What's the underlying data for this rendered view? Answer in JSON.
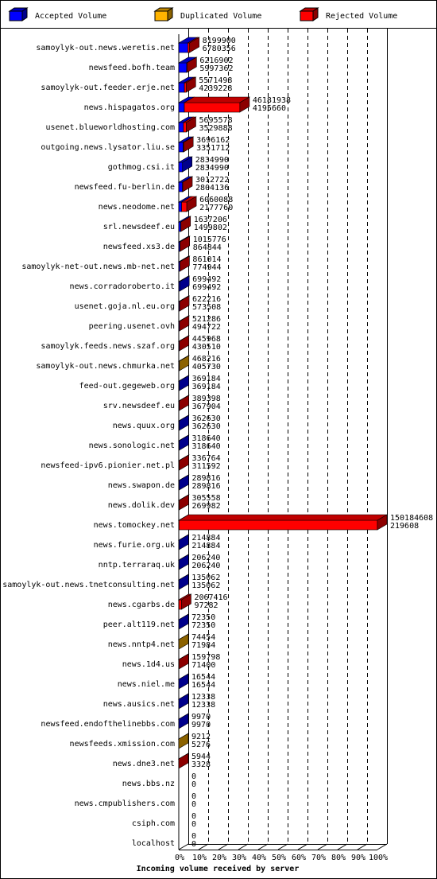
{
  "chart_data": {
    "type": "bar3d-stacked",
    "x_axis_label": "Incoming volume received by server",
    "categories": [
      "samoylyk-out.news.weretis.net",
      "newsfeed.bofh.team",
      "samoylyk-out.feeder.erje.net",
      "news.hispagatos.org",
      "usenet.blueworldhosting.com",
      "outgoing.news.lysator.liu.se",
      "gothmog.csi.it",
      "newsfeed.fu-berlin.de",
      "news.neodome.net",
      "srl.newsdeef.eu",
      "newsfeed.xs3.de",
      "samoylyk-net-out.news.mb-net.net",
      "news.corradoroberto.it",
      "usenet.goja.nl.eu.org",
      "peering.usenet.ovh",
      "samoylyk.feeds.news.szaf.org",
      "samoylyk-out.news.chmurka.net",
      "feed-out.gegeweb.org",
      "srv.newsdeef.eu",
      "news.quux.org",
      "news.sonologic.net",
      "newsfeed-ipv6.pionier.net.pl",
      "news.swapon.de",
      "news.dolik.dev",
      "news.tomockey.net",
      "news.furie.org.uk",
      "nntp.terraraq.uk",
      "samoylyk-out.news.tnetconsulting.net",
      "news.cgarbs.de",
      "peer.alt119.net",
      "news.nntp4.net",
      "news.1d4.us",
      "news.niel.me",
      "news.ausics.net",
      "newsfeed.endofthelinebbs.com",
      "newsfeeds.xmission.com",
      "news.dne3.net",
      "news.bbs.nz",
      "news.cmpublishers.com",
      "csiph.com",
      "localhost"
    ],
    "totals": [
      8199900,
      6216902,
      5571498,
      46181938,
      5695578,
      3696162,
      2834990,
      3012722,
      6060088,
      1637206,
      1015776,
      861014,
      699492,
      622216,
      521286,
      445968,
      468216,
      369184,
      389398,
      362630,
      318640,
      336764,
      289816,
      305558,
      150184608,
      214884,
      206240,
      135062,
      2067416,
      72350,
      74454,
      159798,
      16544,
      12338,
      9970,
      9212,
      5944,
      0,
      0,
      0,
      0
    ],
    "series": [
      {
        "name": "Accepted Volume",
        "color": "#0000ff",
        "values": [
          6780356,
          5997362,
          4239228,
          4195660,
          3529888,
          3351712,
          2834990,
          2804136,
          2177760,
          1499802,
          864844,
          774944,
          699492,
          573508,
          494722,
          430510,
          405730,
          369184,
          367904,
          362630,
          318640,
          311592,
          289816,
          269982,
          219608,
          214884,
          206240,
          135062,
          97282,
          72350,
          71984,
          71400,
          16544,
          12338,
          9970,
          5276,
          3328,
          0,
          0,
          0,
          0
        ]
      },
      {
        "name": "Duplicated Volume",
        "color": "#ffb400",
        "values": [
          0,
          0,
          0,
          0,
          0,
          0,
          0,
          0,
          0,
          0,
          0,
          0,
          0,
          0,
          0,
          0,
          62486,
          0,
          0,
          0,
          0,
          0,
          0,
          0,
          0,
          0,
          0,
          0,
          0,
          0,
          2470,
          0,
          0,
          0,
          0,
          3936,
          0,
          0,
          0,
          0,
          0
        ]
      },
      {
        "name": "Rejected Volume",
        "color": "#ff0000",
        "values": [
          1419544,
          219540,
          1332270,
          41986278,
          2165690,
          344450,
          0,
          208586,
          3882328,
          137404,
          150932,
          86070,
          0,
          48708,
          26564,
          15458,
          0,
          0,
          21494,
          0,
          0,
          25172,
          0,
          35576,
          149965000,
          0,
          0,
          0,
          1970134,
          0,
          0,
          88398,
          0,
          0,
          0,
          0,
          2616,
          0,
          0,
          0,
          0
        ]
      }
    ],
    "xlim": [
      0,
      150184608
    ],
    "xticks": [
      {
        "value": 0,
        "label": "0%"
      },
      {
        "value": 15018460.8,
        "label": "10%"
      },
      {
        "value": 30036921.6,
        "label": "20%"
      },
      {
        "value": 45055382.4,
        "label": "30%"
      },
      {
        "value": 60073843.2,
        "label": "40%"
      },
      {
        "value": 75092304,
        "label": "50%"
      },
      {
        "value": 90110764.8,
        "label": "60%"
      },
      {
        "value": 105129225.6,
        "label": "70%"
      },
      {
        "value": 120147686.4,
        "label": "80%"
      },
      {
        "value": 135166147.2,
        "label": "90%"
      },
      {
        "value": 150184608,
        "label": "100%"
      }
    ],
    "grid": true
  }
}
